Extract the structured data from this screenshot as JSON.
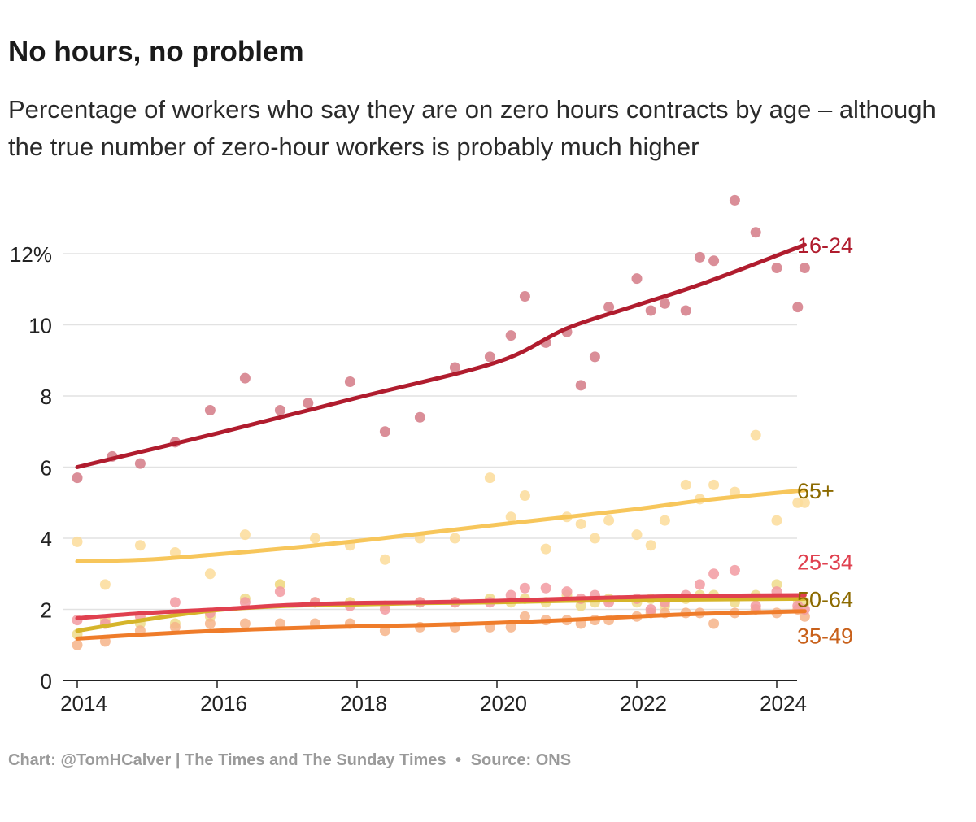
{
  "title": "No hours, no problem",
  "subtitle": "Percentage of workers who say they are on zero hours contracts by age – although the true number of zero-hour workers is probably much higher",
  "footer": {
    "credit": "Chart: @TomHCalver | The Times and The Sunday Times",
    "separator": "•",
    "source": "Source: ONS"
  },
  "chart_data": {
    "type": "scatter",
    "xlabel": "",
    "ylabel": "",
    "xlim": [
      2014,
      2024.4
    ],
    "ylim": [
      0,
      13
    ],
    "x_ticks": [
      2014,
      2016,
      2018,
      2020,
      2022,
      2024
    ],
    "y_ticks": [
      0,
      2,
      4,
      6,
      8,
      10,
      12
    ],
    "y_tick_labels": [
      "0",
      "2",
      "4",
      "6",
      "8",
      "10",
      "12%"
    ],
    "grid": true,
    "legend": "direct labels at right end of trend lines",
    "series": [
      {
        "name": "16-24",
        "color": "#b01c2e",
        "dot_color": "#d37a86",
        "label_color": "#b01c2e",
        "trend": [
          [
            2014,
            6.0
          ],
          [
            2016,
            6.95
          ],
          [
            2018,
            7.95
          ],
          [
            2020,
            8.95
          ],
          [
            2021,
            9.9
          ],
          [
            2022,
            10.55
          ],
          [
            2023,
            11.2
          ],
          [
            2024.4,
            12.25
          ]
        ],
        "points": [
          [
            2014,
            5.7
          ],
          [
            2014.5,
            6.3
          ],
          [
            2014.9,
            6.1
          ],
          [
            2015.4,
            6.7
          ],
          [
            2015.9,
            7.6
          ],
          [
            2016.4,
            8.5
          ],
          [
            2016.9,
            7.6
          ],
          [
            2017.3,
            7.8
          ],
          [
            2017.9,
            8.4
          ],
          [
            2018.4,
            7.0
          ],
          [
            2018.9,
            7.4
          ],
          [
            2019.4,
            8.8
          ],
          [
            2019.9,
            9.1
          ],
          [
            2020.2,
            9.7
          ],
          [
            2020.4,
            10.8
          ],
          [
            2020.7,
            9.5
          ],
          [
            2021,
            9.8
          ],
          [
            2021.2,
            8.3
          ],
          [
            2021.4,
            9.1
          ],
          [
            2021.6,
            10.5
          ],
          [
            2022,
            11.3
          ],
          [
            2022.2,
            10.4
          ],
          [
            2022.4,
            10.6
          ],
          [
            2022.7,
            10.4
          ],
          [
            2022.9,
            11.9
          ],
          [
            2023.1,
            11.8
          ],
          [
            2023.4,
            13.5
          ],
          [
            2023.7,
            12.6
          ],
          [
            2024,
            11.6
          ],
          [
            2024.3,
            10.5
          ],
          [
            2024.4,
            11.6
          ]
        ]
      },
      {
        "name": "65+",
        "color": "#f7c65b",
        "dot_color": "#fbdc9a",
        "label_color": "#8c6a00",
        "trend": [
          [
            2014,
            3.35
          ],
          [
            2015,
            3.4
          ],
          [
            2016,
            3.55
          ],
          [
            2017,
            3.72
          ],
          [
            2018,
            3.92
          ],
          [
            2019,
            4.15
          ],
          [
            2020,
            4.38
          ],
          [
            2021,
            4.6
          ],
          [
            2022,
            4.82
          ],
          [
            2023,
            5.08
          ],
          [
            2024.4,
            5.35
          ]
        ],
        "points": [
          [
            2014,
            3.9
          ],
          [
            2014.4,
            2.7
          ],
          [
            2014.9,
            3.8
          ],
          [
            2015.4,
            3.6
          ],
          [
            2015.9,
            3.0
          ],
          [
            2016.4,
            4.1
          ],
          [
            2016.9,
            2.7
          ],
          [
            2017.4,
            4.0
          ],
          [
            2017.9,
            3.8
          ],
          [
            2018.4,
            3.4
          ],
          [
            2018.9,
            4.0
          ],
          [
            2019.4,
            4.0
          ],
          [
            2019.9,
            5.7
          ],
          [
            2020.2,
            4.6
          ],
          [
            2020.4,
            5.2
          ],
          [
            2020.7,
            3.7
          ],
          [
            2021,
            4.6
          ],
          [
            2021.2,
            4.4
          ],
          [
            2021.4,
            4.0
          ],
          [
            2021.6,
            4.5
          ],
          [
            2022,
            4.1
          ],
          [
            2022.2,
            3.8
          ],
          [
            2022.4,
            4.5
          ],
          [
            2022.7,
            5.5
          ],
          [
            2022.9,
            5.1
          ],
          [
            2023.1,
            5.5
          ],
          [
            2023.4,
            5.3
          ],
          [
            2023.7,
            6.9
          ],
          [
            2024,
            4.5
          ],
          [
            2024.3,
            5.0
          ],
          [
            2024.4,
            5.0
          ]
        ]
      },
      {
        "name": "25-34",
        "color": "#e0404f",
        "dot_color": "#f29aa1",
        "label_color": "#e0404f",
        "trend": [
          [
            2014,
            1.75
          ],
          [
            2015,
            1.9
          ],
          [
            2016,
            2.0
          ],
          [
            2017,
            2.12
          ],
          [
            2018,
            2.18
          ],
          [
            2019,
            2.2
          ],
          [
            2020,
            2.24
          ],
          [
            2021,
            2.3
          ],
          [
            2022,
            2.35
          ],
          [
            2023,
            2.38
          ],
          [
            2024.4,
            2.4
          ]
        ],
        "points": [
          [
            2014,
            1.7
          ],
          [
            2014.4,
            1.6
          ],
          [
            2014.9,
            1.8
          ],
          [
            2015.4,
            2.2
          ],
          [
            2015.9,
            1.9
          ],
          [
            2016.4,
            2.2
          ],
          [
            2016.9,
            2.5
          ],
          [
            2017.4,
            2.2
          ],
          [
            2017.9,
            2.1
          ],
          [
            2018.4,
            2.0
          ],
          [
            2018.9,
            2.2
          ],
          [
            2019.4,
            2.2
          ],
          [
            2019.9,
            2.2
          ],
          [
            2020.2,
            2.4
          ],
          [
            2020.4,
            2.6
          ],
          [
            2020.7,
            2.6
          ],
          [
            2021,
            2.5
          ],
          [
            2021.2,
            2.3
          ],
          [
            2021.4,
            2.4
          ],
          [
            2021.6,
            2.2
          ],
          [
            2022,
            2.3
          ],
          [
            2022.2,
            2.0
          ],
          [
            2022.4,
            2.2
          ],
          [
            2022.7,
            2.4
          ],
          [
            2022.9,
            2.7
          ],
          [
            2023.1,
            3.0
          ],
          [
            2023.4,
            3.1
          ],
          [
            2023.7,
            2.1
          ],
          [
            2024,
            2.5
          ],
          [
            2024.3,
            2.1
          ],
          [
            2024.4,
            2.0
          ]
        ]
      },
      {
        "name": "50-64",
        "color": "#d6b52a",
        "dot_color": "#eedb8a",
        "label_color": "#8c6a00",
        "trend": [
          [
            2014,
            1.4
          ],
          [
            2015,
            1.72
          ],
          [
            2016,
            1.98
          ],
          [
            2017,
            2.1
          ],
          [
            2018,
            2.14
          ],
          [
            2019,
            2.18
          ],
          [
            2020,
            2.2
          ],
          [
            2021,
            2.24
          ],
          [
            2022,
            2.26
          ],
          [
            2023,
            2.28
          ],
          [
            2024.4,
            2.3
          ]
        ],
        "points": [
          [
            2014,
            1.3
          ],
          [
            2014.4,
            1.7
          ],
          [
            2014.9,
            1.6
          ],
          [
            2015.4,
            1.6
          ],
          [
            2015.9,
            1.8
          ],
          [
            2016.4,
            2.3
          ],
          [
            2016.9,
            2.7
          ],
          [
            2017.4,
            2.2
          ],
          [
            2017.9,
            2.2
          ],
          [
            2018.4,
            2.1
          ],
          [
            2018.9,
            2.2
          ],
          [
            2019.4,
            2.2
          ],
          [
            2019.9,
            2.3
          ],
          [
            2020.2,
            2.2
          ],
          [
            2020.4,
            2.3
          ],
          [
            2020.7,
            2.2
          ],
          [
            2021,
            2.4
          ],
          [
            2021.2,
            2.1
          ],
          [
            2021.4,
            2.2
          ],
          [
            2021.6,
            2.3
          ],
          [
            2022,
            2.2
          ],
          [
            2022.2,
            2.3
          ],
          [
            2022.4,
            2.1
          ],
          [
            2022.7,
            2.3
          ],
          [
            2022.9,
            2.4
          ],
          [
            2023.1,
            2.4
          ],
          [
            2023.4,
            2.2
          ],
          [
            2023.7,
            2.4
          ],
          [
            2024,
            2.7
          ],
          [
            2024.3,
            2.3
          ],
          [
            2024.4,
            2.2
          ]
        ]
      },
      {
        "name": "35-49",
        "color": "#ef7c2a",
        "dot_color": "#f6b48a",
        "label_color": "#c8601a",
        "trend": [
          [
            2014,
            1.18
          ],
          [
            2015,
            1.3
          ],
          [
            2016,
            1.4
          ],
          [
            2017,
            1.47
          ],
          [
            2018,
            1.52
          ],
          [
            2019,
            1.56
          ],
          [
            2020,
            1.62
          ],
          [
            2021,
            1.7
          ],
          [
            2022,
            1.8
          ],
          [
            2023,
            1.88
          ],
          [
            2024.4,
            1.95
          ]
        ],
        "points": [
          [
            2014,
            1.0
          ],
          [
            2014.4,
            1.1
          ],
          [
            2014.9,
            1.4
          ],
          [
            2015.4,
            1.5
          ],
          [
            2015.9,
            1.6
          ],
          [
            2016.4,
            1.6
          ],
          [
            2016.9,
            1.6
          ],
          [
            2017.4,
            1.6
          ],
          [
            2017.9,
            1.6
          ],
          [
            2018.4,
            1.4
          ],
          [
            2018.9,
            1.5
          ],
          [
            2019.4,
            1.5
          ],
          [
            2019.9,
            1.5
          ],
          [
            2020.2,
            1.5
          ],
          [
            2020.4,
            1.8
          ],
          [
            2020.7,
            1.7
          ],
          [
            2021,
            1.7
          ],
          [
            2021.2,
            1.6
          ],
          [
            2021.4,
            1.7
          ],
          [
            2021.6,
            1.7
          ],
          [
            2022,
            1.8
          ],
          [
            2022.2,
            1.9
          ],
          [
            2022.4,
            1.9
          ],
          [
            2022.7,
            1.9
          ],
          [
            2022.9,
            1.9
          ],
          [
            2023.1,
            1.6
          ],
          [
            2023.4,
            1.9
          ],
          [
            2023.7,
            2.0
          ],
          [
            2024,
            1.9
          ],
          [
            2024.3,
            2.0
          ],
          [
            2024.4,
            1.8
          ]
        ]
      }
    ]
  }
}
